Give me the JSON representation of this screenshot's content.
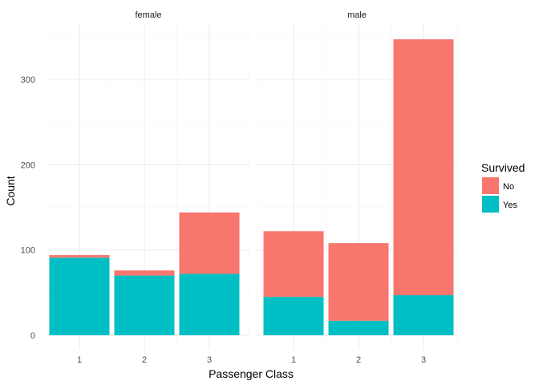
{
  "chart_data": {
    "type": "bar",
    "stacked": true,
    "facet_by": "sex",
    "xlabel": "Passenger Class",
    "ylabel": "Count",
    "ylim": [
      0,
      360
    ],
    "yticks": [
      0,
      100,
      200,
      300
    ],
    "grid": true,
    "legend": {
      "title": "Survived",
      "placement": "right",
      "entries": [
        {
          "name": "No",
          "color": "#F8766D"
        },
        {
          "name": "Yes",
          "color": "#00BFC4"
        }
      ]
    },
    "panels": [
      {
        "title": "female",
        "categories": [
          "1",
          "2",
          "3"
        ],
        "series": [
          {
            "name": "Yes",
            "values": [
              91,
              70,
              72
            ]
          },
          {
            "name": "No",
            "values": [
              3,
              6,
              72
            ]
          }
        ]
      },
      {
        "title": "male",
        "categories": [
          "1",
          "2",
          "3"
        ],
        "series": [
          {
            "name": "Yes",
            "values": [
              45,
              17,
              47
            ]
          },
          {
            "name": "No",
            "values": [
              77,
              91,
              300
            ]
          }
        ]
      }
    ]
  }
}
